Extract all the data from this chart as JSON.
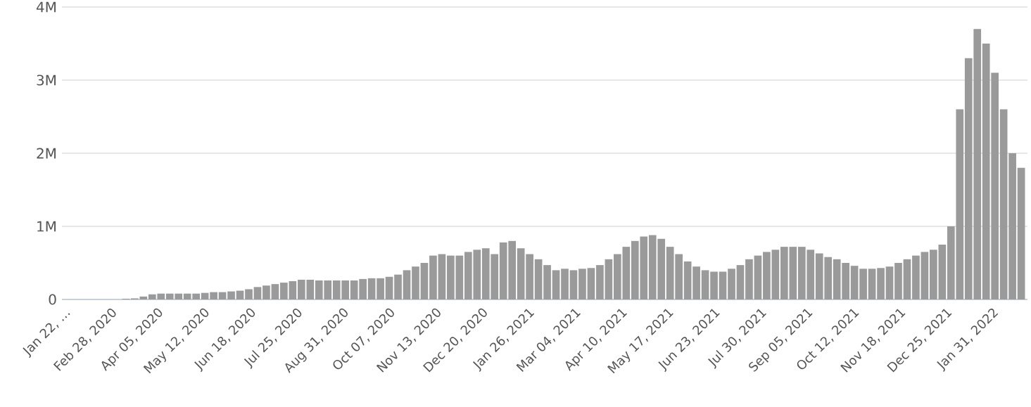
{
  "chart_data": {
    "type": "bar",
    "color": "#9a9a9a",
    "grid": "y",
    "x": [
      "2020-01-22",
      "2020-01-29",
      "2020-02-05",
      "2020-02-12",
      "2020-02-19",
      "2020-02-26",
      "2020-03-04",
      "2020-03-11",
      "2020-03-18",
      "2020-03-25",
      "2020-04-01",
      "2020-04-08",
      "2020-04-15",
      "2020-04-22",
      "2020-04-29",
      "2020-05-06",
      "2020-05-13",
      "2020-05-20",
      "2020-05-27",
      "2020-06-03",
      "2020-06-10",
      "2020-06-17",
      "2020-06-24",
      "2020-07-01",
      "2020-07-08",
      "2020-07-15",
      "2020-07-22",
      "2020-07-29",
      "2020-08-05",
      "2020-08-12",
      "2020-08-19",
      "2020-08-26",
      "2020-09-02",
      "2020-09-09",
      "2020-09-16",
      "2020-09-23",
      "2020-09-30",
      "2020-10-07",
      "2020-10-14",
      "2020-10-21",
      "2020-10-28",
      "2020-11-04",
      "2020-11-11",
      "2020-11-18",
      "2020-11-25",
      "2020-12-02",
      "2020-12-09",
      "2020-12-16",
      "2020-12-23",
      "2020-12-30",
      "2021-01-06",
      "2021-01-13",
      "2021-01-20",
      "2021-01-27",
      "2021-02-03",
      "2021-02-10",
      "2021-02-17",
      "2021-02-24",
      "2021-03-03",
      "2021-03-10",
      "2021-03-17",
      "2021-03-24",
      "2021-03-31",
      "2021-04-07",
      "2021-04-14",
      "2021-04-21",
      "2021-04-28",
      "2021-05-05",
      "2021-05-12",
      "2021-05-19",
      "2021-05-26",
      "2021-06-02",
      "2021-06-09",
      "2021-06-16",
      "2021-06-23",
      "2021-06-30",
      "2021-07-07",
      "2021-07-14",
      "2021-07-21",
      "2021-07-28",
      "2021-08-04",
      "2021-08-11",
      "2021-08-18",
      "2021-08-25",
      "2021-09-01",
      "2021-09-08",
      "2021-09-15",
      "2021-09-22",
      "2021-09-29",
      "2021-10-06",
      "2021-10-13",
      "2021-10-20",
      "2021-10-27",
      "2021-11-03",
      "2021-11-10",
      "2021-11-17",
      "2021-11-24",
      "2021-12-01",
      "2021-12-08",
      "2021-12-15",
      "2021-12-22",
      "2021-12-29",
      "2022-01-05",
      "2022-01-12",
      "2022-01-19",
      "2022-01-26",
      "2022-02-02",
      "2022-02-09",
      "2022-02-16",
      "2022-02-23"
    ],
    "values": [
      0,
      0,
      0,
      0,
      0,
      0,
      0,
      10000,
      15000,
      40000,
      70000,
      80000,
      80000,
      80000,
      80000,
      80000,
      90000,
      100000,
      100000,
      110000,
      120000,
      140000,
      170000,
      190000,
      210000,
      230000,
      250000,
      270000,
      270000,
      260000,
      260000,
      260000,
      260000,
      260000,
      280000,
      290000,
      290000,
      310000,
      340000,
      400000,
      450000,
      500000,
      600000,
      620000,
      600000,
      600000,
      650000,
      680000,
      700000,
      620000,
      780000,
      800000,
      700000,
      620000,
      550000,
      470000,
      400000,
      420000,
      400000,
      420000,
      430000,
      470000,
      550000,
      620000,
      720000,
      800000,
      860000,
      880000,
      830000,
      720000,
      620000,
      520000,
      450000,
      400000,
      380000,
      380000,
      420000,
      470000,
      550000,
      600000,
      650000,
      680000,
      720000,
      720000,
      720000,
      680000,
      630000,
      580000,
      550000,
      500000,
      460000,
      420000,
      420000,
      430000,
      450000,
      500000,
      550000,
      600000,
      650000,
      680000,
      750000,
      1000000,
      2600000,
      3300000,
      3700000,
      3500000,
      3100000,
      2600000,
      2000000,
      1800000
    ],
    "xlim": [
      "2020-01-20",
      "2022-02-28"
    ],
    "xticks": [
      {
        "value": "2020-01-22",
        "label": "Jan 22, …"
      },
      {
        "value": "2020-02-28",
        "label": "Feb 28, 2020"
      },
      {
        "value": "2020-04-05",
        "label": "Apr 05, 2020"
      },
      {
        "value": "2020-05-12",
        "label": "May 12, 2020"
      },
      {
        "value": "2020-06-18",
        "label": "Jun 18, 2020"
      },
      {
        "value": "2020-07-25",
        "label": "Jul 25, 2020"
      },
      {
        "value": "2020-08-31",
        "label": "Aug 31, 2020"
      },
      {
        "value": "2020-10-07",
        "label": "Oct 07, 2020"
      },
      {
        "value": "2020-11-13",
        "label": "Nov 13, 2020"
      },
      {
        "value": "2020-12-20",
        "label": "Dec 20, 2020"
      },
      {
        "value": "2021-01-26",
        "label": "Jan 26, 2021"
      },
      {
        "value": "2021-03-04",
        "label": "Mar 04, 2021"
      },
      {
        "value": "2021-04-10",
        "label": "Apr 10, 2021"
      },
      {
        "value": "2021-05-17",
        "label": "May 17, 2021"
      },
      {
        "value": "2021-06-23",
        "label": "Jun 23, 2021"
      },
      {
        "value": "2021-07-30",
        "label": "Jul 30, 2021"
      },
      {
        "value": "2021-09-05",
        "label": "Sep 05, 2021"
      },
      {
        "value": "2021-10-12",
        "label": "Oct 12, 2021"
      },
      {
        "value": "2021-11-18",
        "label": "Nov 18, 2021"
      },
      {
        "value": "2021-12-25",
        "label": "Dec 25, 2021"
      },
      {
        "value": "2022-01-31",
        "label": "Jan 31, 2022"
      }
    ],
    "ylim": [
      0,
      4000000
    ],
    "yticks": [
      0,
      {
        "value": 1000000,
        "label": "1M"
      },
      {
        "value": 2000000,
        "label": "2M"
      },
      {
        "value": 3000000,
        "label": "3M"
      },
      {
        "value": 4000000,
        "label": "4M"
      }
    ]
  }
}
